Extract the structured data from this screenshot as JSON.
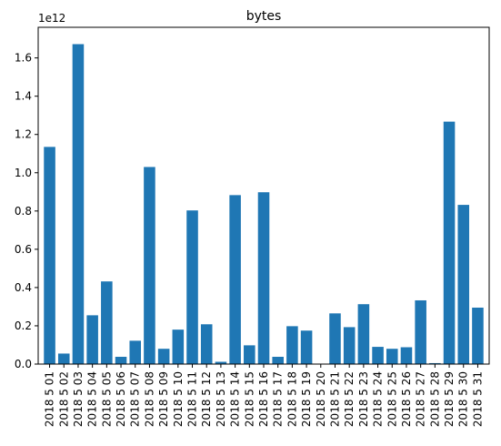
{
  "chart_data": {
    "type": "bar",
    "title": "bytes",
    "xlabel": "",
    "ylabel": "",
    "y_scale_label": "1e12",
    "ylim": [
      0,
      1.76
    ],
    "yticks": [
      0.0,
      0.2,
      0.4,
      0.6,
      0.8,
      1.0,
      1.2,
      1.4,
      1.6
    ],
    "ytick_labels": [
      "0.0",
      "0.2",
      "0.4",
      "0.6",
      "0.8",
      "1.0",
      "1.2",
      "1.4",
      "1.6"
    ],
    "grid": false,
    "bar_color": "#1f77b4",
    "categories": [
      "2018 5 01",
      "2018 5 02",
      "2018 5 03",
      "2018 5 04",
      "2018 5 05",
      "2018 5 06",
      "2018 5 07",
      "2018 5 08",
      "2018 5 09",
      "2018 5 10",
      "2018 5 11",
      "2018 5 12",
      "2018 5 13",
      "2018 5 14",
      "2018 5 15",
      "2018 5 16",
      "2018 5 17",
      "2018 5 18",
      "2018 5 19",
      "2018 5 20",
      "2018 5 21",
      "2018 5 22",
      "2018 5 23",
      "2018 5 24",
      "2018 5 25",
      "2018 5 26",
      "2018 5 27",
      "2018 5 28",
      "2018 5 29",
      "2018 5 30",
      "2018 5 31"
    ],
    "values": [
      1.135,
      0.055,
      1.672,
      0.255,
      0.432,
      0.038,
      0.122,
      1.03,
      0.08,
      0.18,
      0.803,
      0.208,
      0.012,
      0.883,
      0.098,
      0.898,
      0.038,
      0.198,
      0.175,
      0.0,
      0.265,
      0.193,
      0.313,
      0.09,
      0.08,
      0.088,
      0.333,
      0.005,
      1.267,
      0.832,
      0.295
    ]
  }
}
